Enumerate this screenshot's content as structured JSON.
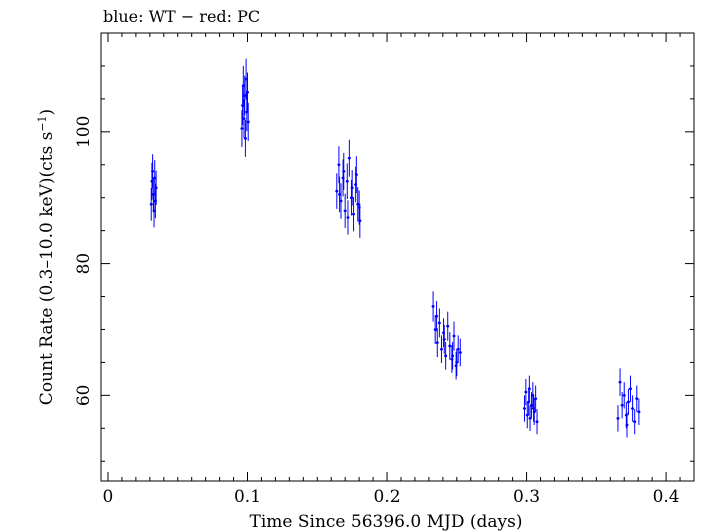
{
  "chart_data": {
    "type": "scatter",
    "title": "blue: WT − red: PC",
    "xlabel": "Time Since 56396.0 MJD (days)",
    "ylabel_main": "Count Rate (0.3–10.0 keV)(cts s",
    "ylabel_sup": "−1",
    "ylabel_close": ")",
    "xlim": [
      -0.005,
      0.42
    ],
    "ylim": [
      47,
      115
    ],
    "x_ticks": [
      0,
      0.1,
      0.2,
      0.3,
      0.4
    ],
    "x_tick_labels": [
      "0",
      "0.1",
      "0.2",
      "0.3",
      "0.4"
    ],
    "y_ticks": [
      60,
      80,
      100
    ],
    "y_tick_labels": [
      "60",
      "80",
      "100"
    ],
    "series_color": "#0000ff",
    "series": [
      {
        "name": "WT",
        "color": "#0000ff",
        "points": [
          [
            0.031,
            89.0,
            2.5
          ],
          [
            0.0315,
            92.5,
            2.8
          ],
          [
            0.032,
            94.0,
            2.6
          ],
          [
            0.0325,
            90.5,
            2.6
          ],
          [
            0.033,
            88.0,
            2.5
          ],
          [
            0.0335,
            93.0,
            2.7
          ],
          [
            0.034,
            89.5,
            2.6
          ],
          [
            0.0345,
            91.5,
            2.6
          ],
          [
            0.096,
            100.5,
            2.8
          ],
          [
            0.0965,
            104.0,
            3.0
          ],
          [
            0.097,
            107.0,
            3.0
          ],
          [
            0.0975,
            102.0,
            2.9
          ],
          [
            0.098,
            105.5,
            3.0
          ],
          [
            0.0985,
            99.0,
            2.8
          ],
          [
            0.099,
            108.0,
            3.1
          ],
          [
            0.0995,
            103.0,
            2.9
          ],
          [
            0.1,
            106.0,
            3.0
          ],
          [
            0.1005,
            101.5,
            2.9
          ],
          [
            0.164,
            91.0,
            2.7
          ],
          [
            0.1655,
            95.0,
            2.8
          ],
          [
            0.167,
            89.5,
            2.7
          ],
          [
            0.1685,
            93.0,
            2.8
          ],
          [
            0.17,
            88.0,
            2.6
          ],
          [
            0.1715,
            92.5,
            2.7
          ],
          [
            0.173,
            96.0,
            2.8
          ],
          [
            0.1745,
            90.0,
            2.7
          ],
          [
            0.176,
            87.5,
            2.6
          ],
          [
            0.1775,
            92.0,
            2.7
          ],
          [
            0.179,
            89.0,
            2.6
          ],
          [
            0.1805,
            86.5,
            2.6
          ],
          [
            0.166,
            90.5,
            2.7
          ],
          [
            0.169,
            94.0,
            2.8
          ],
          [
            0.172,
            87.0,
            2.6
          ],
          [
            0.175,
            91.5,
            2.7
          ],
          [
            0.178,
            93.5,
            2.8
          ],
          [
            0.18,
            88.5,
            2.6
          ],
          [
            0.233,
            73.5,
            2.3
          ],
          [
            0.2345,
            70.0,
            2.2
          ],
          [
            0.236,
            68.0,
            2.2
          ],
          [
            0.2375,
            71.0,
            2.2
          ],
          [
            0.239,
            67.0,
            2.1
          ],
          [
            0.2405,
            69.5,
            2.2
          ],
          [
            0.242,
            66.0,
            2.1
          ],
          [
            0.2435,
            70.5,
            2.2
          ],
          [
            0.245,
            67.5,
            2.1
          ],
          [
            0.2465,
            65.5,
            2.1
          ],
          [
            0.248,
            69.0,
            2.2
          ],
          [
            0.2495,
            64.5,
            2.1
          ],
          [
            0.251,
            67.0,
            2.1
          ],
          [
            0.2525,
            66.5,
            2.1
          ],
          [
            0.2355,
            72.0,
            2.3
          ],
          [
            0.241,
            68.5,
            2.2
          ],
          [
            0.247,
            66.0,
            2.1
          ],
          [
            0.25,
            65.0,
            2.1
          ],
          [
            0.2985,
            58.0,
            2.0
          ],
          [
            0.2995,
            60.5,
            2.0
          ],
          [
            0.3005,
            57.0,
            2.0
          ],
          [
            0.3015,
            59.0,
            2.0
          ],
          [
            0.3025,
            56.5,
            1.9
          ],
          [
            0.3035,
            58.5,
            2.0
          ],
          [
            0.3045,
            60.0,
            2.0
          ],
          [
            0.3055,
            57.5,
            2.0
          ],
          [
            0.3065,
            59.5,
            2.0
          ],
          [
            0.3075,
            56.0,
            1.9
          ],
          [
            0.302,
            61.0,
            2.0
          ],
          [
            0.305,
            58.0,
            2.0
          ],
          [
            0.3655,
            56.5,
            2.0
          ],
          [
            0.367,
            62.0,
            2.1
          ],
          [
            0.3685,
            58.5,
            2.0
          ],
          [
            0.37,
            60.0,
            2.0
          ],
          [
            0.3715,
            57.0,
            2.0
          ],
          [
            0.373,
            59.0,
            2.0
          ],
          [
            0.3745,
            61.0,
            2.0
          ],
          [
            0.376,
            58.0,
            2.0
          ],
          [
            0.3775,
            56.0,
            1.9
          ],
          [
            0.379,
            59.5,
            2.0
          ],
          [
            0.3805,
            57.5,
            2.0
          ],
          [
            0.372,
            55.5,
            1.9
          ]
        ]
      }
    ]
  }
}
